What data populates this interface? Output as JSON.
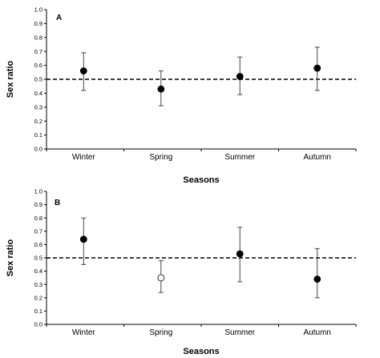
{
  "chart_data": [
    {
      "type": "scatter",
      "panel_label": "A",
      "categories": [
        "Winter",
        "Spring",
        "Summer",
        "Autumn"
      ],
      "values": [
        0.56,
        0.43,
        0.52,
        0.58
      ],
      "error_upper": [
        0.69,
        0.56,
        0.66,
        0.73
      ],
      "error_lower": [
        0.42,
        0.31,
        0.39,
        0.42
      ],
      "marker_fill": [
        "#000000",
        "#000000",
        "#000000",
        "#000000"
      ],
      "xlabel": "Seasons",
      "ylabel": "Sex ratio",
      "ylim": [
        0,
        1
      ],
      "yticks": [
        "0.0",
        "0.1",
        "0.2",
        "0.3",
        "0.4",
        "0.5",
        "0.6",
        "0.7",
        "0.8",
        "0.9",
        "1.0"
      ],
      "reference_line": 0.5,
      "grid": false
    },
    {
      "type": "scatter",
      "panel_label": "B",
      "categories": [
        "Winter",
        "Spring",
        "Summer",
        "Autumn"
      ],
      "values": [
        0.64,
        0.35,
        0.53,
        0.34
      ],
      "error_upper": [
        0.8,
        0.48,
        0.73,
        0.57
      ],
      "error_lower": [
        0.45,
        0.24,
        0.32,
        0.2
      ],
      "marker_fill": [
        "#000000",
        "#ffffff",
        "#000000",
        "#000000"
      ],
      "xlabel": "Seasons",
      "ylabel": "Sex ratio",
      "ylim": [
        0,
        1
      ],
      "yticks": [
        "0.0",
        "0.1",
        "0.2",
        "0.3",
        "0.4",
        "0.5",
        "0.6",
        "0.7",
        "0.8",
        "0.9",
        "1.0"
      ],
      "reference_line": 0.5,
      "grid": false
    }
  ]
}
